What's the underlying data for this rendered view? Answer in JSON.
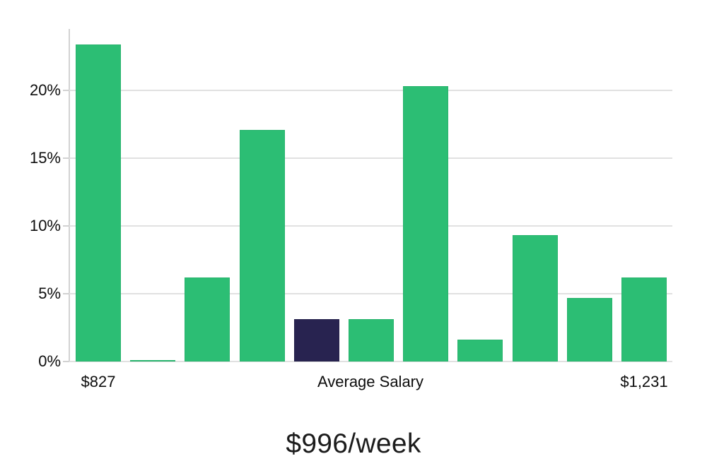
{
  "chart_data": {
    "type": "bar",
    "title": "$996/week",
    "values": [
      23.4,
      0.1,
      6.2,
      17.1,
      3.1,
      3.1,
      20.3,
      1.6,
      9.3,
      4.7,
      6.2
    ],
    "value_unit": "%",
    "highlight_index": 4,
    "x_tick_labels": [
      "$827",
      "Average Salary",
      "$1,231"
    ],
    "y_ticks": [
      0,
      5,
      10,
      15,
      20
    ],
    "y_tick_labels": [
      "0%",
      "5%",
      "10%",
      "15%",
      "20%"
    ],
    "ylim": [
      0,
      24.5
    ],
    "grid": true,
    "legend": null,
    "colors": {
      "bar": "#2cbe74",
      "bar_highlight": "#282350",
      "gridline": "#e1e1e1",
      "axis_line": "#d2d2d2",
      "tick_text": "#0d0d0d",
      "title_text": "#1c1c1c",
      "background": "#ffffff"
    }
  }
}
